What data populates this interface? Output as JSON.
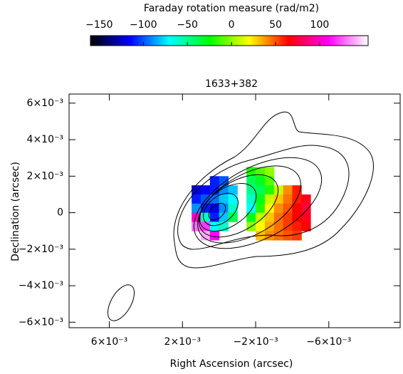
{
  "chart_data": {
    "type": "heatmap",
    "colorbar_label": "Faraday rotation measure (rad/m2)",
    "title": "1633+382",
    "x_label": "Right Ascension (arcsec)",
    "y_label": "Declination (arcsec)",
    "clim": [
      -160,
      155
    ],
    "cticks": [
      {
        "value": -150,
        "label": "−150"
      },
      {
        "value": -100,
        "label": "−100"
      },
      {
        "value": -50,
        "label": "−50"
      },
      0,
      50,
      100
    ],
    "colormap": [
      "#000000",
      "#0000ff",
      "#00ffff",
      "#00ff00",
      "#ffff00",
      "#ff0000",
      "#ff00ff",
      "#ffffff"
    ],
    "xlim": [
      0.0082,
      -0.0099
    ],
    "ylim": [
      -0.0063,
      0.0065
    ],
    "xticks": [
      {
        "value": 0.006,
        "label": "6×10⁻³"
      },
      {
        "value": 0.002,
        "label": "2×10⁻³"
      },
      {
        "value": -0.002,
        "label": "−2×10⁻³"
      },
      {
        "value": -0.006,
        "label": "−6×10⁻³"
      }
    ],
    "yticks": [
      {
        "value": 0.006,
        "label": "6×10⁻³"
      },
      {
        "value": 0.004,
        "label": "4×10⁻³"
      },
      {
        "value": 0.002,
        "label": "2×10⁻³"
      },
      0,
      {
        "value": -0.002,
        "label": "−2×10⁻³"
      },
      {
        "value": -0.004,
        "label": "−4×10⁻³"
      },
      {
        "value": -0.006,
        "label": "−6×10⁻³"
      }
    ],
    "x": [
      0.00125,
      0.00075,
      0.00025,
      -0.00025,
      -0.00075,
      -0.00125,
      -0.00175,
      -0.00225,
      -0.00275,
      -0.00325,
      -0.00375,
      -0.00425,
      -0.00475
    ],
    "y": [
      0.00225,
      0.00175,
      0.00125,
      0.00075,
      0.00025,
      -0.00025,
      -0.00075,
      -0.00125
    ],
    "values": [
      [
        null,
        null,
        null,
        null,
        null,
        null,
        -20,
        -10,
        0,
        null,
        null,
        null,
        null
      ],
      [
        null,
        null,
        -110,
        -100,
        null,
        null,
        -40,
        -30,
        -10,
        null,
        null,
        null,
        null
      ],
      [
        -120,
        -115,
        -110,
        -90,
        -80,
        null,
        -50,
        -40,
        -20,
        10,
        40,
        60,
        null
      ],
      [
        -110,
        -100,
        -95,
        -80,
        -70,
        null,
        -60,
        -30,
        10,
        30,
        45,
        60,
        70
      ],
      [
        -90,
        -110,
        -120,
        -90,
        -60,
        null,
        -70,
        -20,
        20,
        40,
        50,
        65,
        75
      ],
      [
        100,
        -60,
        -110,
        -80,
        -40,
        null,
        -30,
        10,
        30,
        45,
        55,
        65,
        70
      ],
      [
        130,
        120,
        -70,
        -60,
        null,
        null,
        0,
        20,
        35,
        45,
        55,
        60,
        65
      ],
      [
        null,
        140,
        110,
        null,
        null,
        null,
        null,
        30,
        40,
        45,
        50,
        55,
        null
      ]
    ]
  }
}
